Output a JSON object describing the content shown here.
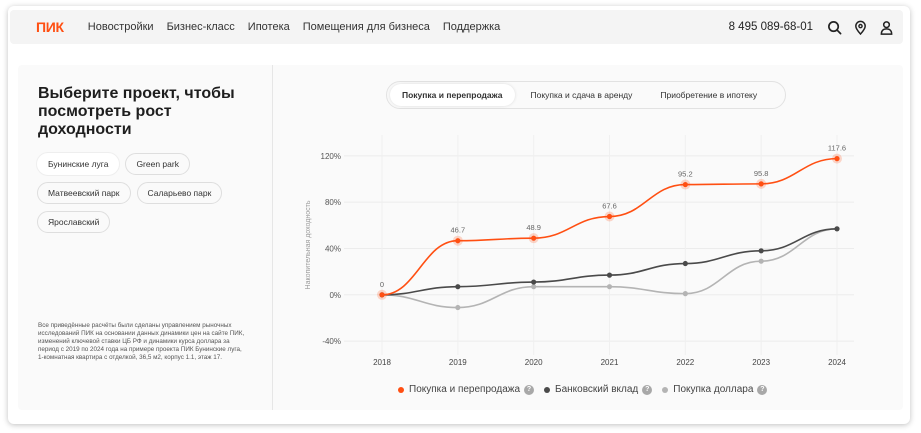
{
  "header": {
    "logo": "ПИК",
    "nav": [
      "Новостройки",
      "Бизнес-класс",
      "Ипотека",
      "Помещения для бизнеса",
      "Поддержка"
    ],
    "phone": "8 495 089-68-01",
    "icons": [
      "search-icon",
      "location-pin-icon",
      "user-icon"
    ]
  },
  "left": {
    "title": "Выберите проект, чтобы посмотреть рост доходности",
    "chips": [
      "Бунинские луга",
      "Green park",
      "Матвеевский парк",
      "Саларьево парк",
      "Ярославский"
    ],
    "active_chip": "Бунинские луга",
    "note": "Все приведённые расчёты были сделаны управлением рыночных исследований ПИК на основании данных динамики цен на сайте ПИК, изменений ключевой ставки ЦБ РФ и динамики курса доллара за период с 2019 по 2024 года на примере проекта ПИК Бунинские луга, 1-комнатная квартира с отделкой, 36,5 м2, корпус 1.1, этаж 17."
  },
  "tabs": [
    "Покупка и перепродажа",
    "Покупка и сдача в аренду",
    "Приобретение в ипотеку"
  ],
  "active_tab": "Покупка и перепродажа",
  "colors": {
    "accent": "#ff4f12",
    "dark": "#4a4a4a",
    "light": "#b4b4b4"
  },
  "chart_data": {
    "type": "line",
    "x": [
      "2018",
      "2019",
      "2020",
      "2021",
      "2022",
      "2023",
      "2024"
    ],
    "ylabel": "Накопительная доходность",
    "yticks": [
      "120%",
      "80%",
      "40%",
      "0%",
      "-40%"
    ],
    "ytick_values": [
      120,
      80,
      40,
      0,
      -40
    ],
    "ylim": [
      -52,
      138
    ],
    "grid": true,
    "legend_position": "bottom",
    "series": [
      {
        "name": "Покупка и перепродажа",
        "color": "#ff4f12",
        "values": [
          0,
          46.7,
          48.9,
          67.6,
          95.2,
          95.8,
          117.6
        ],
        "labels": [
          "0",
          "46.7",
          "48.9",
          "67.6",
          "95.2",
          "95.8",
          "117.6"
        ]
      },
      {
        "name": "Банковский вклад",
        "color": "#4a4a4a",
        "values": [
          0,
          7,
          11,
          17,
          27,
          38,
          57
        ]
      },
      {
        "name": "Покупка доллара",
        "color": "#b4b4b4",
        "values": [
          0,
          -11,
          7,
          7,
          1,
          29,
          57
        ]
      }
    ]
  }
}
